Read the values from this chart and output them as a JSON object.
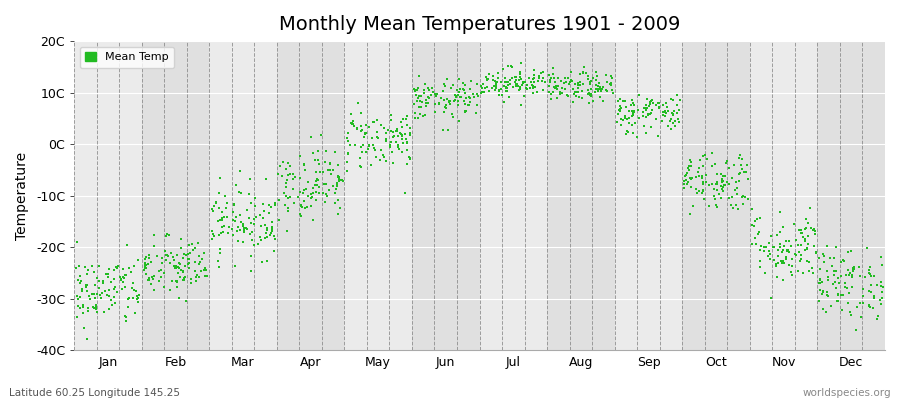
{
  "title": "Monthly Mean Temperatures 1901 - 2009",
  "ylabel": "Temperature",
  "bottom_left_label": "Latitude 60.25 Longitude 145.25",
  "bottom_right_label": "worldspecies.org",
  "legend_label": "Mean Temp",
  "dot_color": "#22BB22",
  "bg_color_light": "#EBEBEB",
  "bg_color_dark": "#E0E0E0",
  "ylim": [
    -40,
    20
  ],
  "yticks": [
    -40,
    -30,
    -20,
    -10,
    0,
    10,
    20
  ],
  "ytick_labels": [
    "-40C",
    "-30C",
    "-20C",
    "-10C",
    "0C",
    "10C",
    "20C"
  ],
  "months": [
    "Jan",
    "Feb",
    "Mar",
    "Apr",
    "May",
    "Jun",
    "Jul",
    "Aug",
    "Sep",
    "Oct",
    "Nov",
    "Dec"
  ],
  "month_means": [
    -28.5,
    -24.0,
    -15.0,
    -7.5,
    1.0,
    8.5,
    12.0,
    11.0,
    6.0,
    -7.0,
    -20.0,
    -27.0
  ],
  "month_stds": [
    3.5,
    3.0,
    3.5,
    3.5,
    3.0,
    2.0,
    1.5,
    1.5,
    2.0,
    3.0,
    3.5,
    3.5
  ],
  "n_years": 109,
  "marker_size": 4,
  "dashed_line_color": "#888888",
  "title_fontsize": 14,
  "tick_fontsize": 9,
  "ylabel_fontsize": 10
}
